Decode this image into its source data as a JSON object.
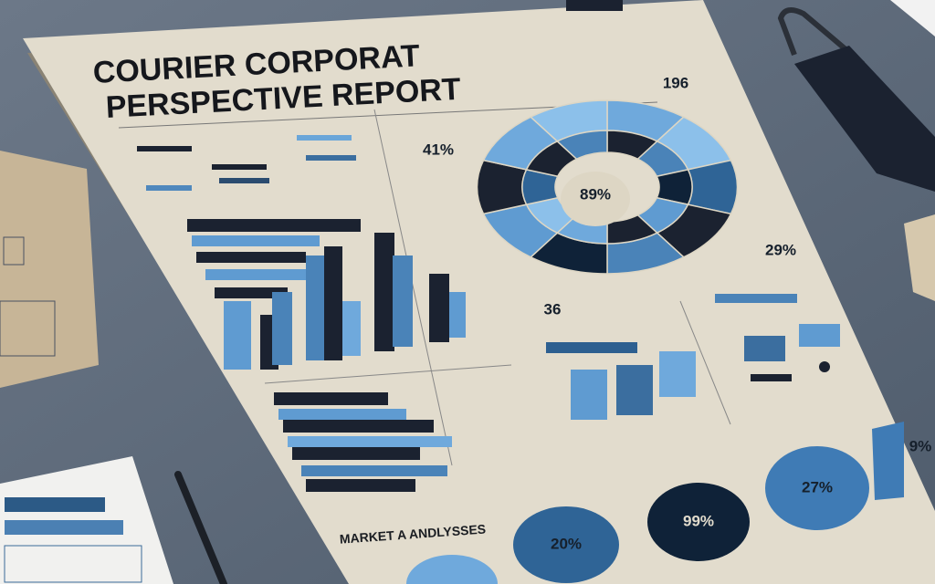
{
  "header": {
    "title_line_1": "COURIER CORPORAT",
    "title_line_2": "PERSPECTIVE REPORT"
  },
  "donut": {
    "center": "89%",
    "callouts": [
      "196",
      "41%",
      "29%",
      "36"
    ]
  },
  "section": {
    "title": "MARKET A ANDLYSSES"
  },
  "circles": [
    "20%",
    "99%",
    "27%"
  ],
  "side_label": "9%"
}
